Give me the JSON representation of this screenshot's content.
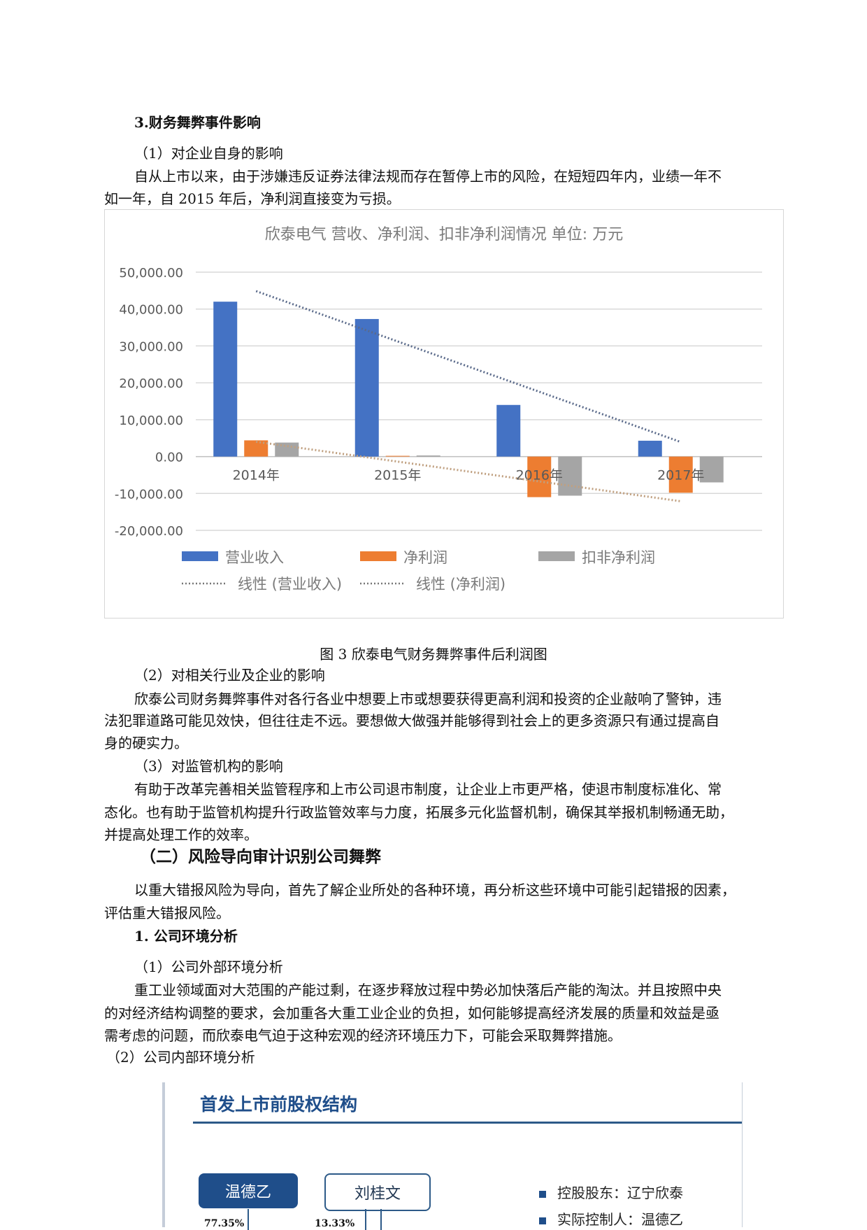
{
  "section3": {
    "heading": "3.财务舞弊事件影响",
    "sub1": "（1）对企业自身的影响",
    "p1": [
      "自从上市以来，由于涉嫌违反证券法律法规而存在暂停上市的风险，在短短四年内，业绩一年不",
      "如一年，自 2015 年后，净利润直接变为亏损。"
    ],
    "caption": "图 3 欣泰电气财务舞弊事件后利润图",
    "sub2": "（2）对相关行业及企业的影响",
    "p2": [
      "欣泰公司财务舞弊事件对各行各业中想要上市或想要获得更高利润和投资的企业敲响了警钟，违",
      "法犯罪道路可能见效快，但往往走不远。要想做大做强并能够得到社会上的更多资源只有通过提高自",
      "身的硬实力。"
    ],
    "sub3": "（3）对监管机构的影响",
    "p3": [
      "有助于改革完善相关监管程序和上市公司退市制度，让企业上市更严格，使退市制度标准化、常",
      "态化。也有助于监管机构提升行政监管效率与力度，拓展多元化监督机制，确保其举报机制畅通无助，",
      "并提高处理工作的效率。"
    ]
  },
  "section_b": {
    "heading": "（二）风险导向审计识别公司舞弊",
    "p1": [
      "以重大错报风险为导向，首先了解企业所处的各种环境，再分析这些环境中可能引起错报的因素，",
      "评估重大错报风险。"
    ],
    "sub_heading": "1. 公司环境分析",
    "sub1": "（1）公司外部环境分析",
    "p2": [
      "重工业领域面对大范围的产能过剩，在逐步释放过程中势必加快落后产能的淘汰。并且按照中央",
      "的对经济结构调整的要求，会加重各大重工业企业的负担，如何能够提高经济发展的质量和效益是亟",
      "需考虑的问题，而欣泰电气迫于这种宏观的经济环境压力下，可能会采取舞弊措施。"
    ],
    "sub2": "（2）公司内部环境分析"
  },
  "chart_data": {
    "type": "bar",
    "title": "欣泰电气 营收、净利润、扣非净利润情况  单位:  万元",
    "categories": [
      "2014年",
      "2015年",
      "2016年",
      "2017年"
    ],
    "series": [
      {
        "name": "营业收入",
        "values": [
          42000,
          37300,
          14000,
          4300
        ],
        "color": "#4472c4"
      },
      {
        "name": "净利润",
        "values": [
          4400,
          200,
          -11000,
          -9800
        ],
        "color": "#ed7d31"
      },
      {
        "name": "扣非净利润",
        "values": [
          3800,
          300,
          -10600,
          -7000
        ],
        "color": "#a5a5a5"
      }
    ],
    "trendlines": [
      {
        "name": "线性 (营业收入)",
        "series": "营业收入",
        "type": "linear"
      },
      {
        "name": "线性 (净利润)",
        "series": "净利润",
        "type": "linear"
      }
    ],
    "yticks": [
      "50,000.00",
      "40,000.00",
      "30,000.00",
      "20,000.00",
      "10,000.00",
      "0.00",
      "-10,000.00",
      "-20,000.00"
    ],
    "ylim": [
      -20000,
      50000
    ],
    "grid": true,
    "legend": "bottom"
  },
  "diagram": {
    "title": "首发上市前股权结构",
    "nodes": [
      "温德乙",
      "刘桂文"
    ],
    "percentages": [
      "77.35%",
      "13.33%"
    ],
    "bullets": [
      "控股股东：辽宁欣泰",
      "实际控制人：温德乙"
    ]
  }
}
